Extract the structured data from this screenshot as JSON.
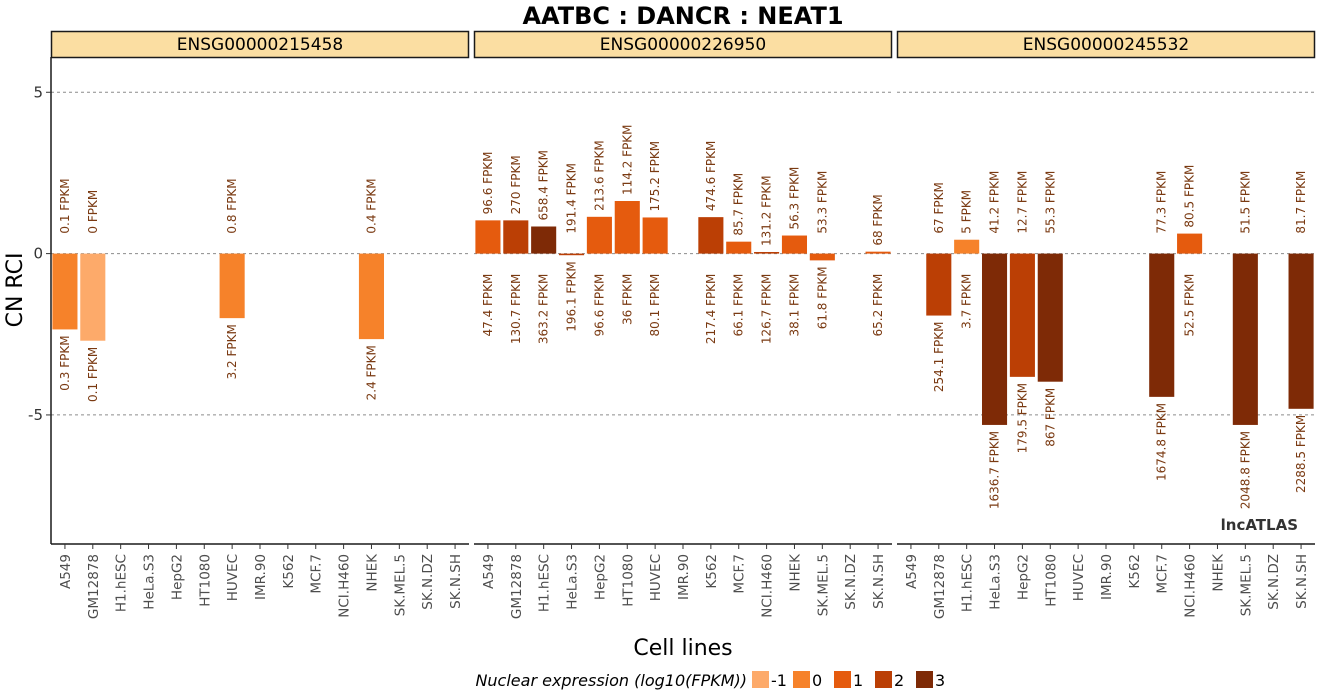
{
  "title": "AATBC : DANCR : NEAT1",
  "watermark": "lncATLAS",
  "colors": {
    "level_-1": "#fdaa6a",
    "level_0": "#f6822a",
    "level_1": "#e55b0e",
    "level_2": "#bb3f05",
    "level_3": "#7e2a06"
  },
  "chart_data": {
    "type": "bar",
    "title": "AATBC : DANCR : NEAT1",
    "xlabel": "Cell lines",
    "ylabel": "CN RCI",
    "ylim": [
      -9,
      6
    ],
    "yticks": [
      5,
      0,
      -5
    ],
    "ytick_labels": [
      "5",
      "0",
      "-5"
    ],
    "grid": "dashed at y ticks",
    "categories": [
      "A549",
      "GM12878",
      "H1.hESC",
      "HeLa.S3",
      "HepG2",
      "HT1080",
      "HUVEC",
      "IMR.90",
      "K562",
      "MCF.7",
      "NCI.H460",
      "NHEK",
      "SK.MEL.5",
      "SK.N.DZ",
      "SK.N.SH"
    ],
    "legend": {
      "title": "Nuclear expression (log10(FPKM))",
      "position": "bottom",
      "levels": [
        "-1",
        "0",
        "1",
        "2",
        "3"
      ]
    },
    "panels": [
      {
        "name": "ENSG00000215458",
        "bars": [
          {
            "cell": "A549",
            "rci": -2.35,
            "level": "0",
            "cyto": "0.1 FPKM",
            "nuc": "0.3 FPKM"
          },
          {
            "cell": "GM12878",
            "rci": -2.7,
            "level": "-1",
            "cyto": "0 FPKM",
            "nuc": "0.1 FPKM"
          },
          {
            "cell": "HUVEC",
            "rci": -2.0,
            "level": "0",
            "cyto": "0.8 FPKM",
            "nuc": "3.2 FPKM"
          },
          {
            "cell": "NHEK",
            "rci": -2.65,
            "level": "0",
            "cyto": "0.4 FPKM",
            "nuc": "2.4 FPKM"
          }
        ]
      },
      {
        "name": "ENSG00000226950",
        "bars": [
          {
            "cell": "A549",
            "rci": 1.03,
            "level": "1",
            "cyto": "96.6 FPKM",
            "nuc": "47.4 FPKM"
          },
          {
            "cell": "GM12878",
            "rci": 1.03,
            "level": "2",
            "cyto": "270 FPKM",
            "nuc": "130.7 FPKM"
          },
          {
            "cell": "H1.hESC",
            "rci": 0.84,
            "level": "3",
            "cyto": "658.4 FPKM",
            "nuc": "363.2 FPKM"
          },
          {
            "cell": "HeLa.S3",
            "rci": -0.05,
            "level": "2",
            "cyto": "191.4 FPKM",
            "nuc": "196.1 FPKM"
          },
          {
            "cell": "HepG2",
            "rci": 1.14,
            "level": "1",
            "cyto": "213.6 FPKM",
            "nuc": "96.6 FPKM"
          },
          {
            "cell": "HT1080",
            "rci": 1.63,
            "level": "1",
            "cyto": "114.2 FPKM",
            "nuc": "36 FPKM"
          },
          {
            "cell": "HUVEC",
            "rci": 1.12,
            "level": "1",
            "cyto": "175.2 FPKM",
            "nuc": "80.1 FPKM"
          },
          {
            "cell": "K562",
            "rci": 1.13,
            "level": "2",
            "cyto": "474.6 FPKM",
            "nuc": "217.4 FPKM"
          },
          {
            "cell": "MCF.7",
            "rci": 0.37,
            "level": "1",
            "cyto": "85.7 FPKM",
            "nuc": "66.1 FPKM"
          },
          {
            "cell": "NCI.H460",
            "rci": 0.05,
            "level": "2",
            "cyto": "131.2 FPKM",
            "nuc": "126.7 FPKM"
          },
          {
            "cell": "NHEK",
            "rci": 0.56,
            "level": "1",
            "cyto": "56.3 FPKM",
            "nuc": "38.1 FPKM"
          },
          {
            "cell": "SK.MEL.5",
            "rci": -0.21,
            "level": "1",
            "cyto": "53.3 FPKM",
            "nuc": "61.8 FPKM"
          },
          {
            "cell": "SK.N.SH",
            "rci": 0.06,
            "level": "1",
            "cyto": "68 FPKM",
            "nuc": "65.2 FPKM"
          }
        ]
      },
      {
        "name": "ENSG00000245532",
        "bars": [
          {
            "cell": "GM12878",
            "rci": -1.92,
            "level": "2",
            "cyto": "67 FPKM",
            "nuc": "254.1 FPKM"
          },
          {
            "cell": "H1.hESC",
            "rci": 0.43,
            "level": "0",
            "cyto": "5 FPKM",
            "nuc": "3.7 FPKM"
          },
          {
            "cell": "HeLa.S3",
            "rci": -5.31,
            "level": "3",
            "cyto": "41.2 FPKM",
            "nuc": "1636.7 FPKM"
          },
          {
            "cell": "HepG2",
            "rci": -3.82,
            "level": "2",
            "cyto": "12.7 FPKM",
            "nuc": "179.5 FPKM"
          },
          {
            "cell": "HT1080",
            "rci": -3.97,
            "level": "3",
            "cyto": "55.3 FPKM",
            "nuc": "867 FPKM"
          },
          {
            "cell": "MCF.7",
            "rci": -4.44,
            "level": "3",
            "cyto": "77.3 FPKM",
            "nuc": "1674.8 FPKM"
          },
          {
            "cell": "NCI.H460",
            "rci": 0.62,
            "level": "1",
            "cyto": "80.5 FPKM",
            "nuc": "52.5 FPKM"
          },
          {
            "cell": "SK.MEL.5",
            "rci": -5.31,
            "level": "3",
            "cyto": "51.5 FPKM",
            "nuc": "2048.8 FPKM"
          },
          {
            "cell": "SK.N.SH",
            "rci": -4.81,
            "level": "3",
            "cyto": "81.7 FPKM",
            "nuc": "2288.5 FPKM"
          }
        ]
      }
    ]
  }
}
